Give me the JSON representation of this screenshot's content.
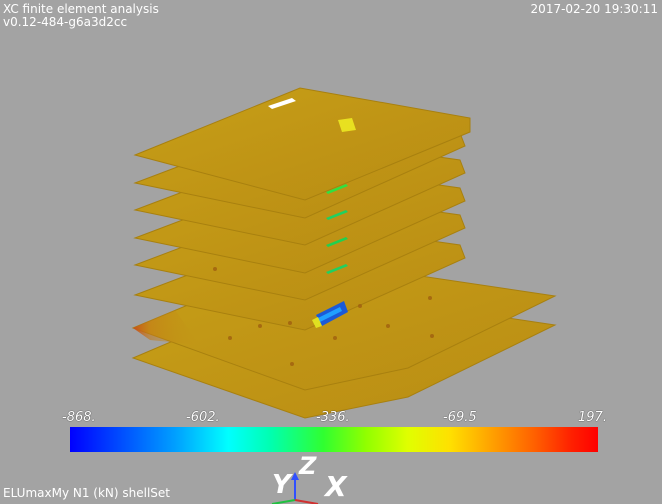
{
  "header": {
    "title": "XC finite element analysis",
    "version": "v0.12-484-g6a3d2cc",
    "timestamp": "2017-02-20 19:30:11"
  },
  "footer": {
    "load_case_label": "ELUmaxMy N1 (kN) shellSet"
  },
  "scalebar": {
    "ticks": [
      "-868.",
      "-602.",
      "-336.",
      "-69.5",
      "197."
    ]
  },
  "axes": {
    "y": "Y",
    "z": "Z",
    "x": "X"
  },
  "colors": {
    "background": "#a3a3a3",
    "slab_fill": "#c49a18",
    "slab_edge": "#b08510"
  }
}
